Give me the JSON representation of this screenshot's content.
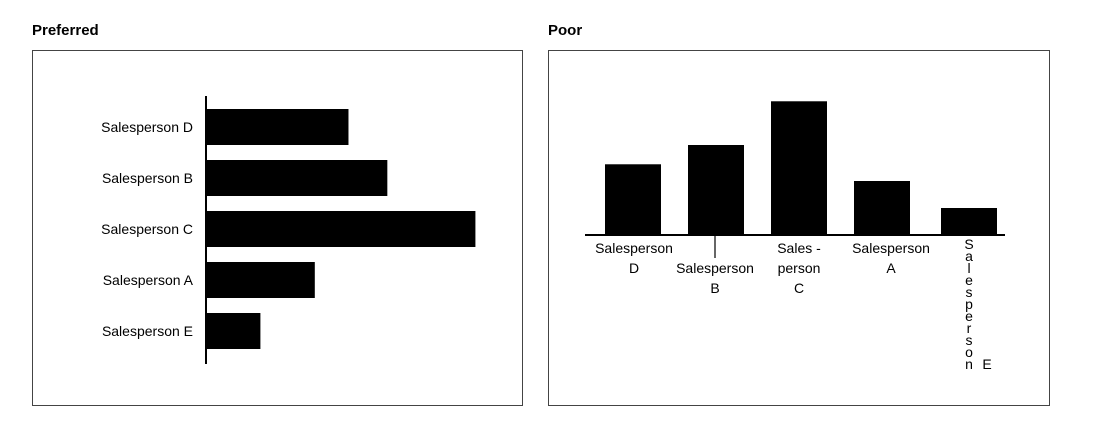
{
  "panels": {
    "left_title": "Preferred",
    "right_title": "Poor"
  },
  "chart_data": [
    {
      "type": "bar",
      "orientation": "horizontal",
      "title": "Preferred",
      "categories": [
        "Salesperson D",
        "Salesperson B",
        "Salesperson C",
        "Salesperson A",
        "Salesperson E"
      ],
      "values": [
        5.5,
        7.0,
        10.4,
        4.2,
        2.1
      ],
      "xlabel": "",
      "ylabel": "",
      "xlim": [
        0,
        10.5
      ],
      "grid": false,
      "legend": "none"
    },
    {
      "type": "bar",
      "orientation": "vertical",
      "title": "Poor",
      "categories": [
        "Salesperson D",
        "Salesperson B",
        "Sales - person C",
        "Salesperson A",
        "Salesperson E"
      ],
      "values": [
        5.5,
        7.0,
        10.4,
        4.2,
        2.1
      ],
      "xlabel": "",
      "ylabel": "",
      "ylim": [
        0,
        10.5
      ],
      "grid": false,
      "legend": "none"
    }
  ]
}
